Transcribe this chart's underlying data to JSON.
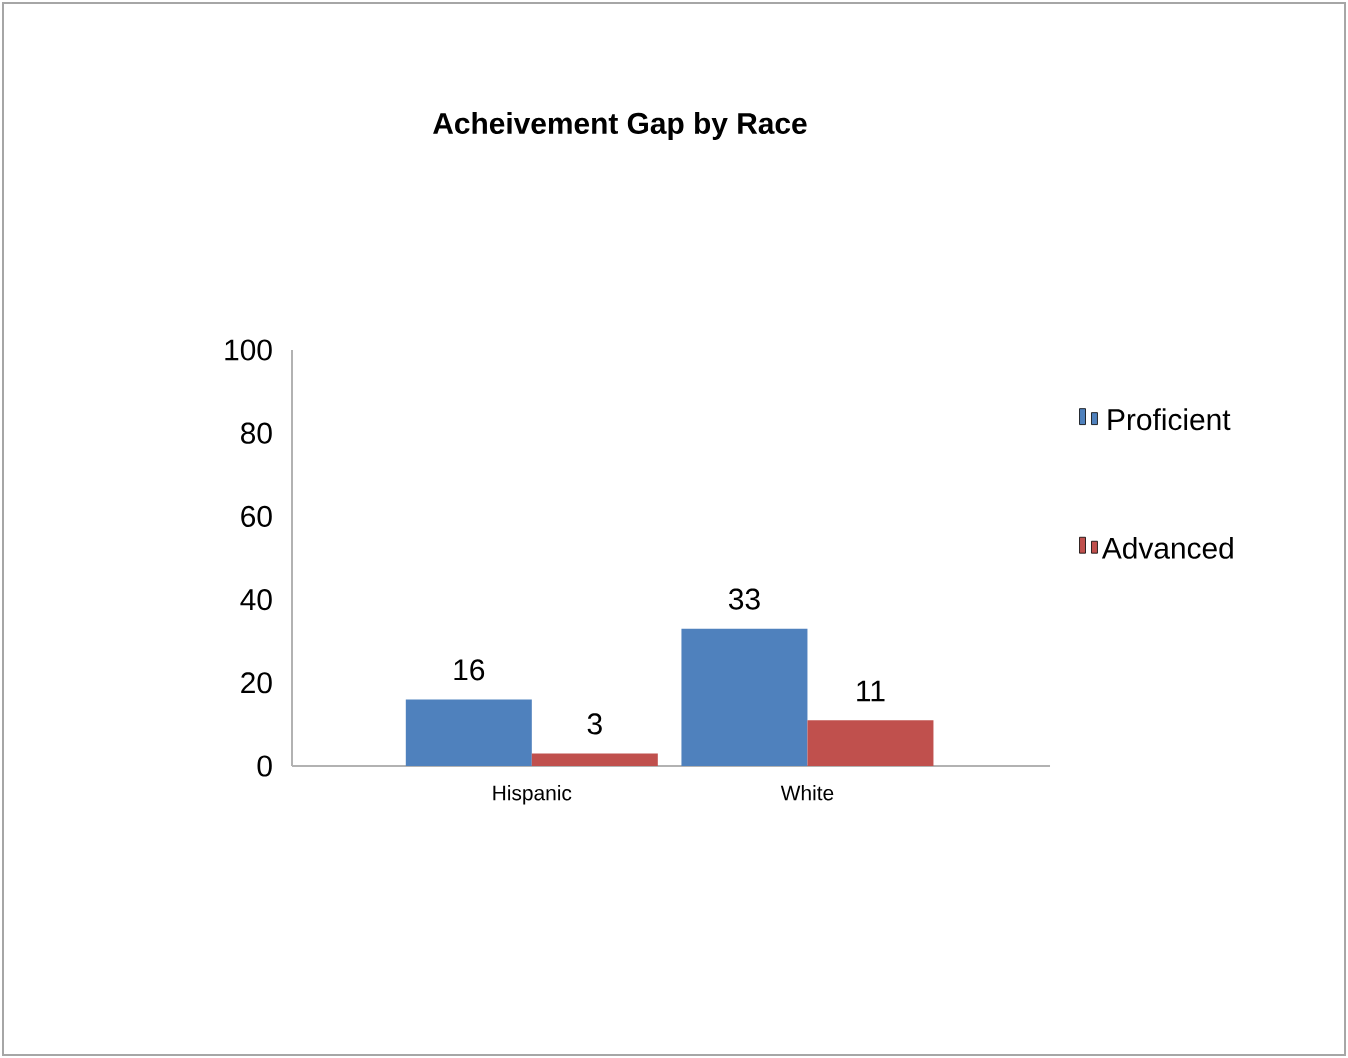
{
  "chart_data": {
    "type": "bar",
    "title": "Acheivement Gap  by Race",
    "categories": [
      "Hispanic",
      "White"
    ],
    "series": [
      {
        "name": "Proficient",
        "color": "#4f81bd",
        "values": [
          16,
          33
        ]
      },
      {
        "name": "Advanced",
        "color": "#c0504d",
        "values": [
          3,
          11
        ]
      }
    ],
    "ylim": [
      0,
      100
    ],
    "yticks": [
      0,
      20,
      40,
      60,
      80,
      100
    ],
    "data_labels": true,
    "legend": "right",
    "grid": false
  }
}
